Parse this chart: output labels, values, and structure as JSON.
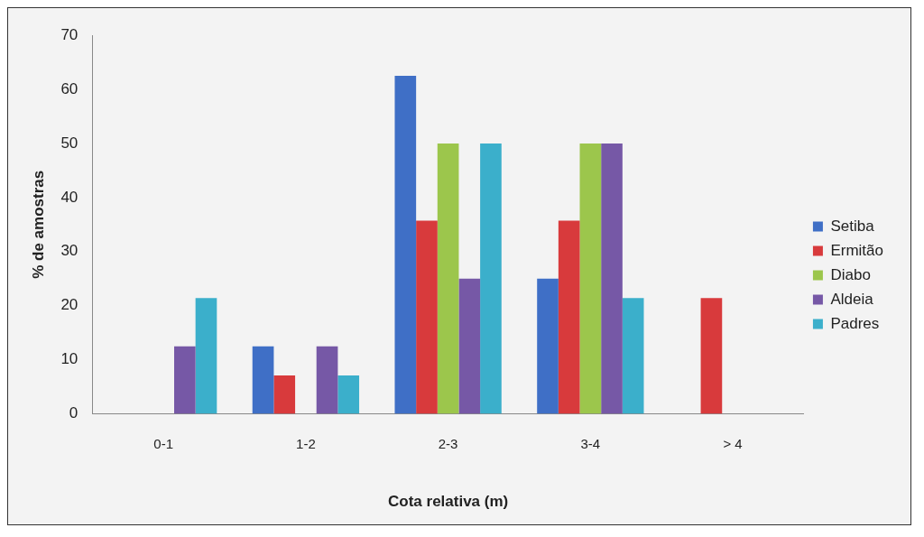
{
  "chart_data": {
    "type": "bar",
    "xlabel": "Cota relativa (m)",
    "ylabel": "% de amostras",
    "categories": [
      "0-1",
      "1-2",
      "2-3",
      "3-4",
      "> 4"
    ],
    "series": [
      {
        "name": "Setiba",
        "color": "#3f6fc6",
        "values": [
          0,
          12.5,
          62.5,
          25,
          0
        ]
      },
      {
        "name": "Ermitão",
        "color": "#d83a3c",
        "values": [
          0,
          7.1,
          35.7,
          35.7,
          21.4
        ]
      },
      {
        "name": "Diabo",
        "color": "#9cc64c",
        "values": [
          0,
          0,
          50,
          50,
          0
        ]
      },
      {
        "name": "Aldeia",
        "color": "#7658a6",
        "values": [
          12.5,
          12.5,
          25,
          50,
          0
        ]
      },
      {
        "name": "Padres",
        "color": "#3bafcb",
        "values": [
          21.4,
          7.1,
          50,
          21.4,
          0
        ]
      }
    ],
    "ylim": [
      0,
      70
    ],
    "yticks": [
      0,
      10,
      20,
      30,
      40,
      50,
      60,
      70
    ],
    "grid": false,
    "legend": "right"
  }
}
